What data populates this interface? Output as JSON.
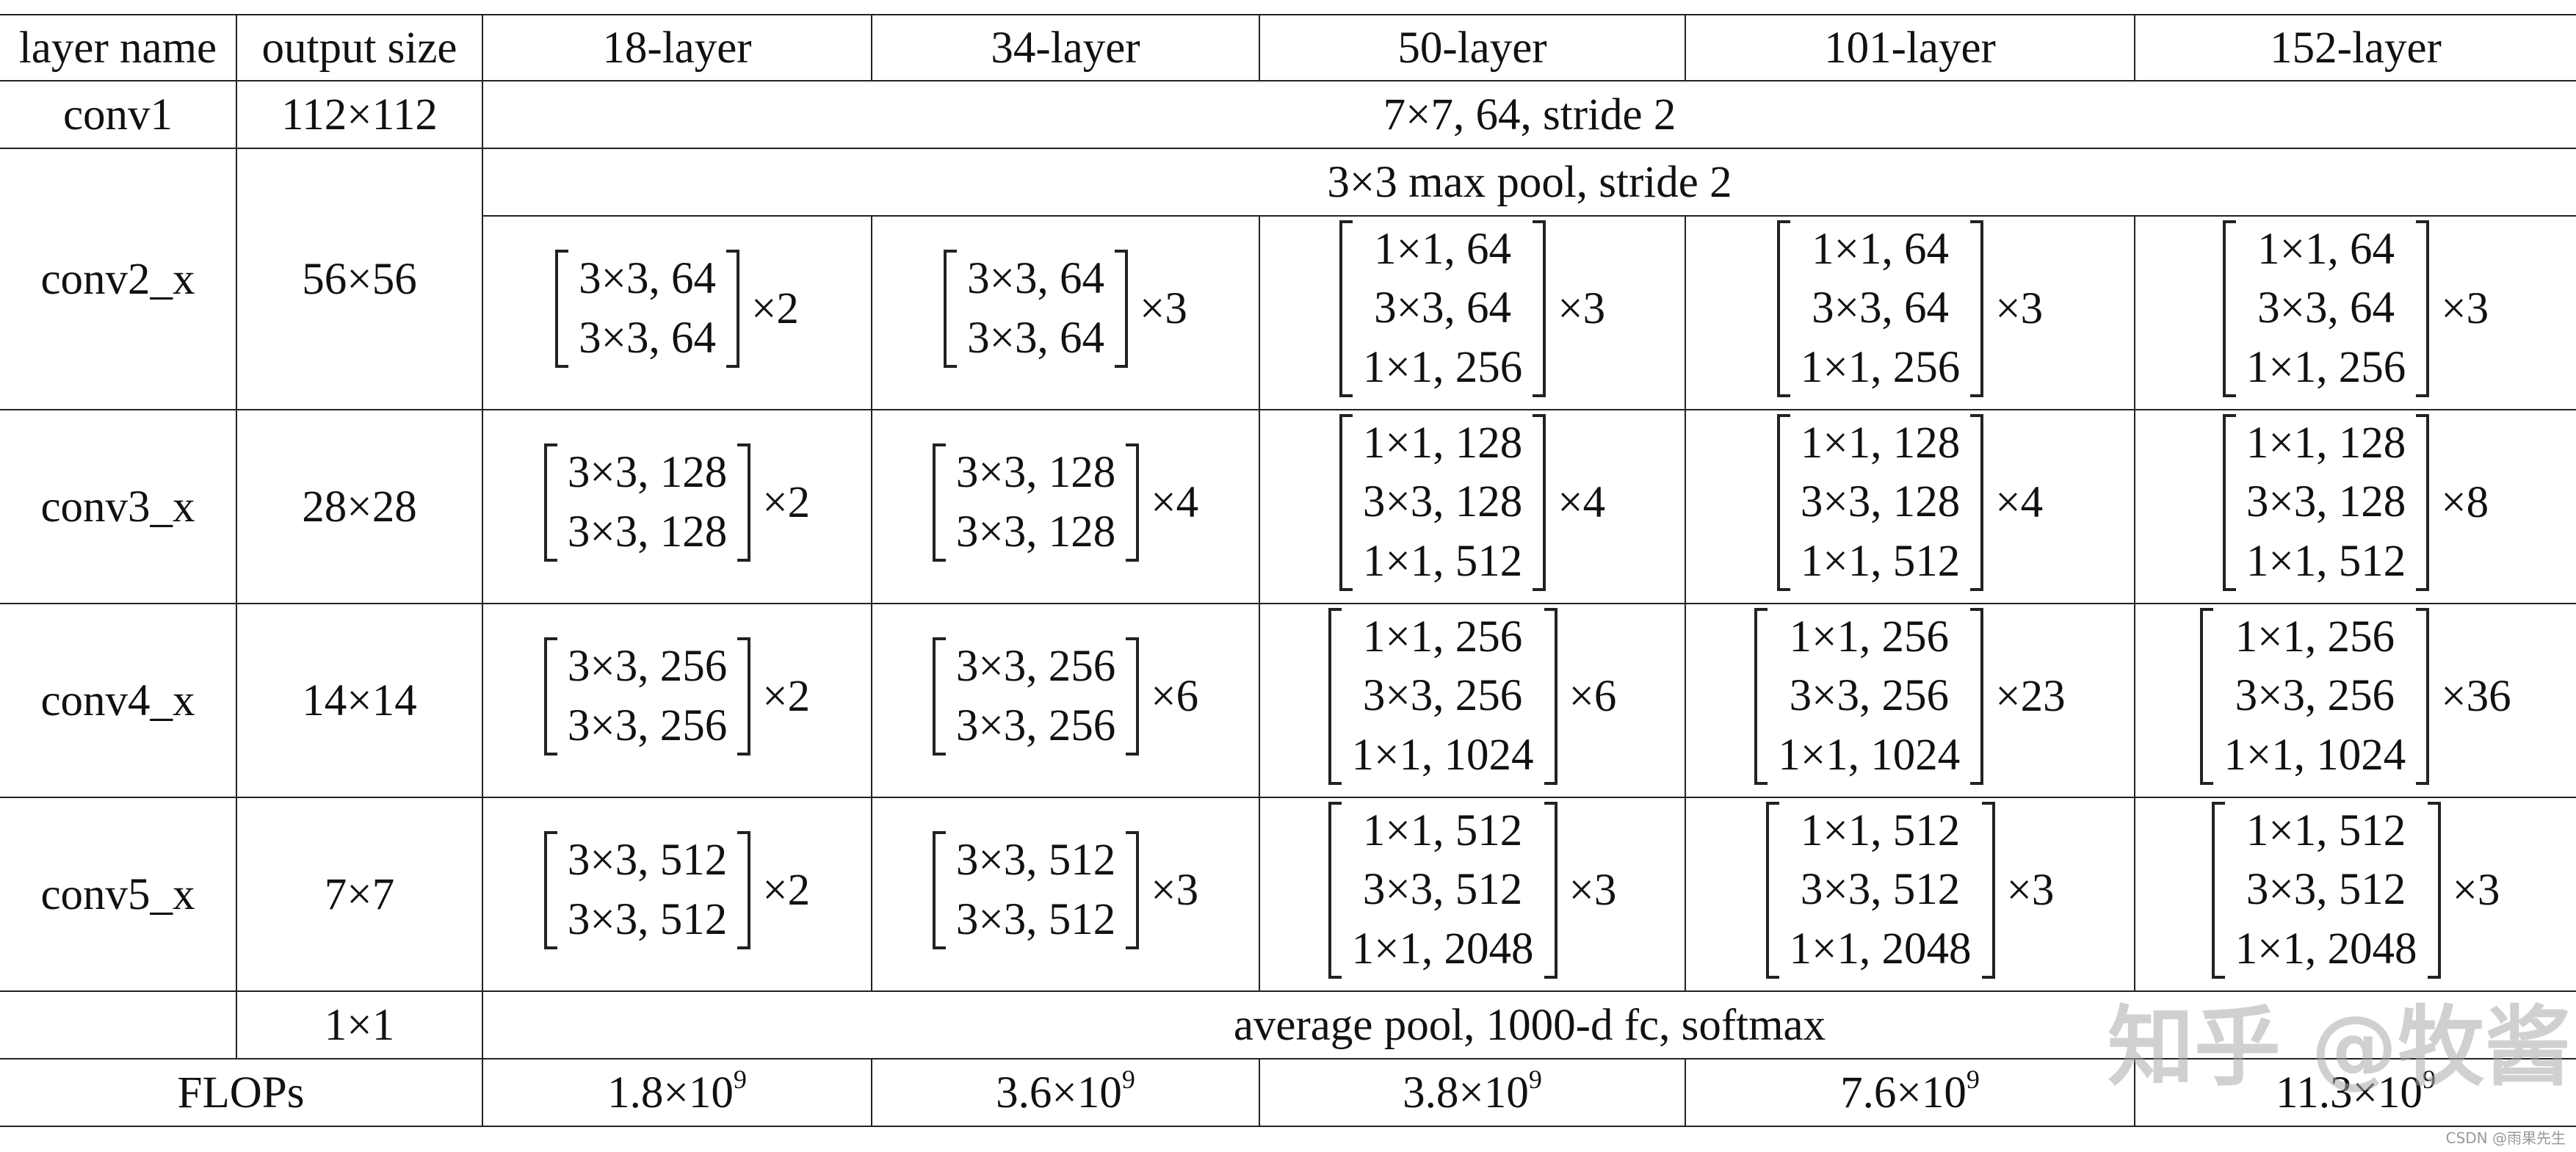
{
  "header": {
    "layer_name": "layer name",
    "output_size": "output size",
    "l18": "18-layer",
    "l34": "34-layer",
    "l50": "50-layer",
    "l101": "101-layer",
    "l152": "152-layer"
  },
  "conv1": {
    "name": "conv1",
    "size": "112×112",
    "spec": "7×7, 64, stride 2"
  },
  "conv2": {
    "name": "conv2_x",
    "size": "56×56",
    "pool": "3×3 max pool, stride 2",
    "blocks": [
      {
        "lines": [
          "3×3, 64",
          "3×3, 64"
        ],
        "mult": "×2"
      },
      {
        "lines": [
          "3×3, 64",
          "3×3, 64"
        ],
        "mult": "×3"
      },
      {
        "lines": [
          "1×1, 64",
          "3×3, 64",
          "1×1, 256"
        ],
        "mult": "×3"
      },
      {
        "lines": [
          "1×1, 64",
          "3×3, 64",
          "1×1, 256"
        ],
        "mult": "×3"
      },
      {
        "lines": [
          "1×1, 64",
          "3×3, 64",
          "1×1, 256"
        ],
        "mult": "×3"
      }
    ]
  },
  "conv3": {
    "name": "conv3_x",
    "size": "28×28",
    "blocks": [
      {
        "lines": [
          "3×3, 128",
          "3×3, 128"
        ],
        "mult": "×2"
      },
      {
        "lines": [
          "3×3, 128",
          "3×3, 128"
        ],
        "mult": "×4"
      },
      {
        "lines": [
          "1×1, 128",
          "3×3, 128",
          "1×1, 512"
        ],
        "mult": "×4"
      },
      {
        "lines": [
          "1×1, 128",
          "3×3, 128",
          "1×1, 512"
        ],
        "mult": "×4"
      },
      {
        "lines": [
          "1×1, 128",
          "3×3, 128",
          "1×1, 512"
        ],
        "mult": "×8"
      }
    ]
  },
  "conv4": {
    "name": "conv4_x",
    "size": "14×14",
    "blocks": [
      {
        "lines": [
          "3×3, 256",
          "3×3, 256"
        ],
        "mult": "×2"
      },
      {
        "lines": [
          "3×3, 256",
          "3×3, 256"
        ],
        "mult": "×6"
      },
      {
        "lines": [
          "1×1, 256",
          "3×3, 256",
          "1×1, 1024"
        ],
        "mult": "×6"
      },
      {
        "lines": [
          "1×1, 256",
          "3×3, 256",
          "1×1, 1024"
        ],
        "mult": "×23"
      },
      {
        "lines": [
          "1×1, 256",
          "3×3, 256",
          "1×1, 1024"
        ],
        "mult": "×36"
      }
    ]
  },
  "conv5": {
    "name": "conv5_x",
    "size": "7×7",
    "blocks": [
      {
        "lines": [
          "3×3, 512",
          "3×3, 512"
        ],
        "mult": "×2"
      },
      {
        "lines": [
          "3×3, 512",
          "3×3, 512"
        ],
        "mult": "×3"
      },
      {
        "lines": [
          "1×1, 512",
          "3×3, 512",
          "1×1, 2048"
        ],
        "mult": "×3"
      },
      {
        "lines": [
          "1×1, 512",
          "3×3, 512",
          "1×1, 2048"
        ],
        "mult": "×3"
      },
      {
        "lines": [
          "1×1, 512",
          "3×3, 512",
          "1×1, 2048"
        ],
        "mult": "×3"
      }
    ]
  },
  "avg": {
    "size": "1×1",
    "spec": "average pool, 1000-d fc, softmax"
  },
  "flops": {
    "label": "FLOPs",
    "values": [
      {
        "base": "1.8×10",
        "exp": "9"
      },
      {
        "base": "3.6×10",
        "exp": "9"
      },
      {
        "base": "3.8×10",
        "exp": "9"
      },
      {
        "base": "7.6×10",
        "exp": "9"
      },
      {
        "base": "11.3×10",
        "exp": "9"
      }
    ]
  },
  "watermark": "知乎 @牧酱",
  "credit": "CSDN @雨果先生"
}
